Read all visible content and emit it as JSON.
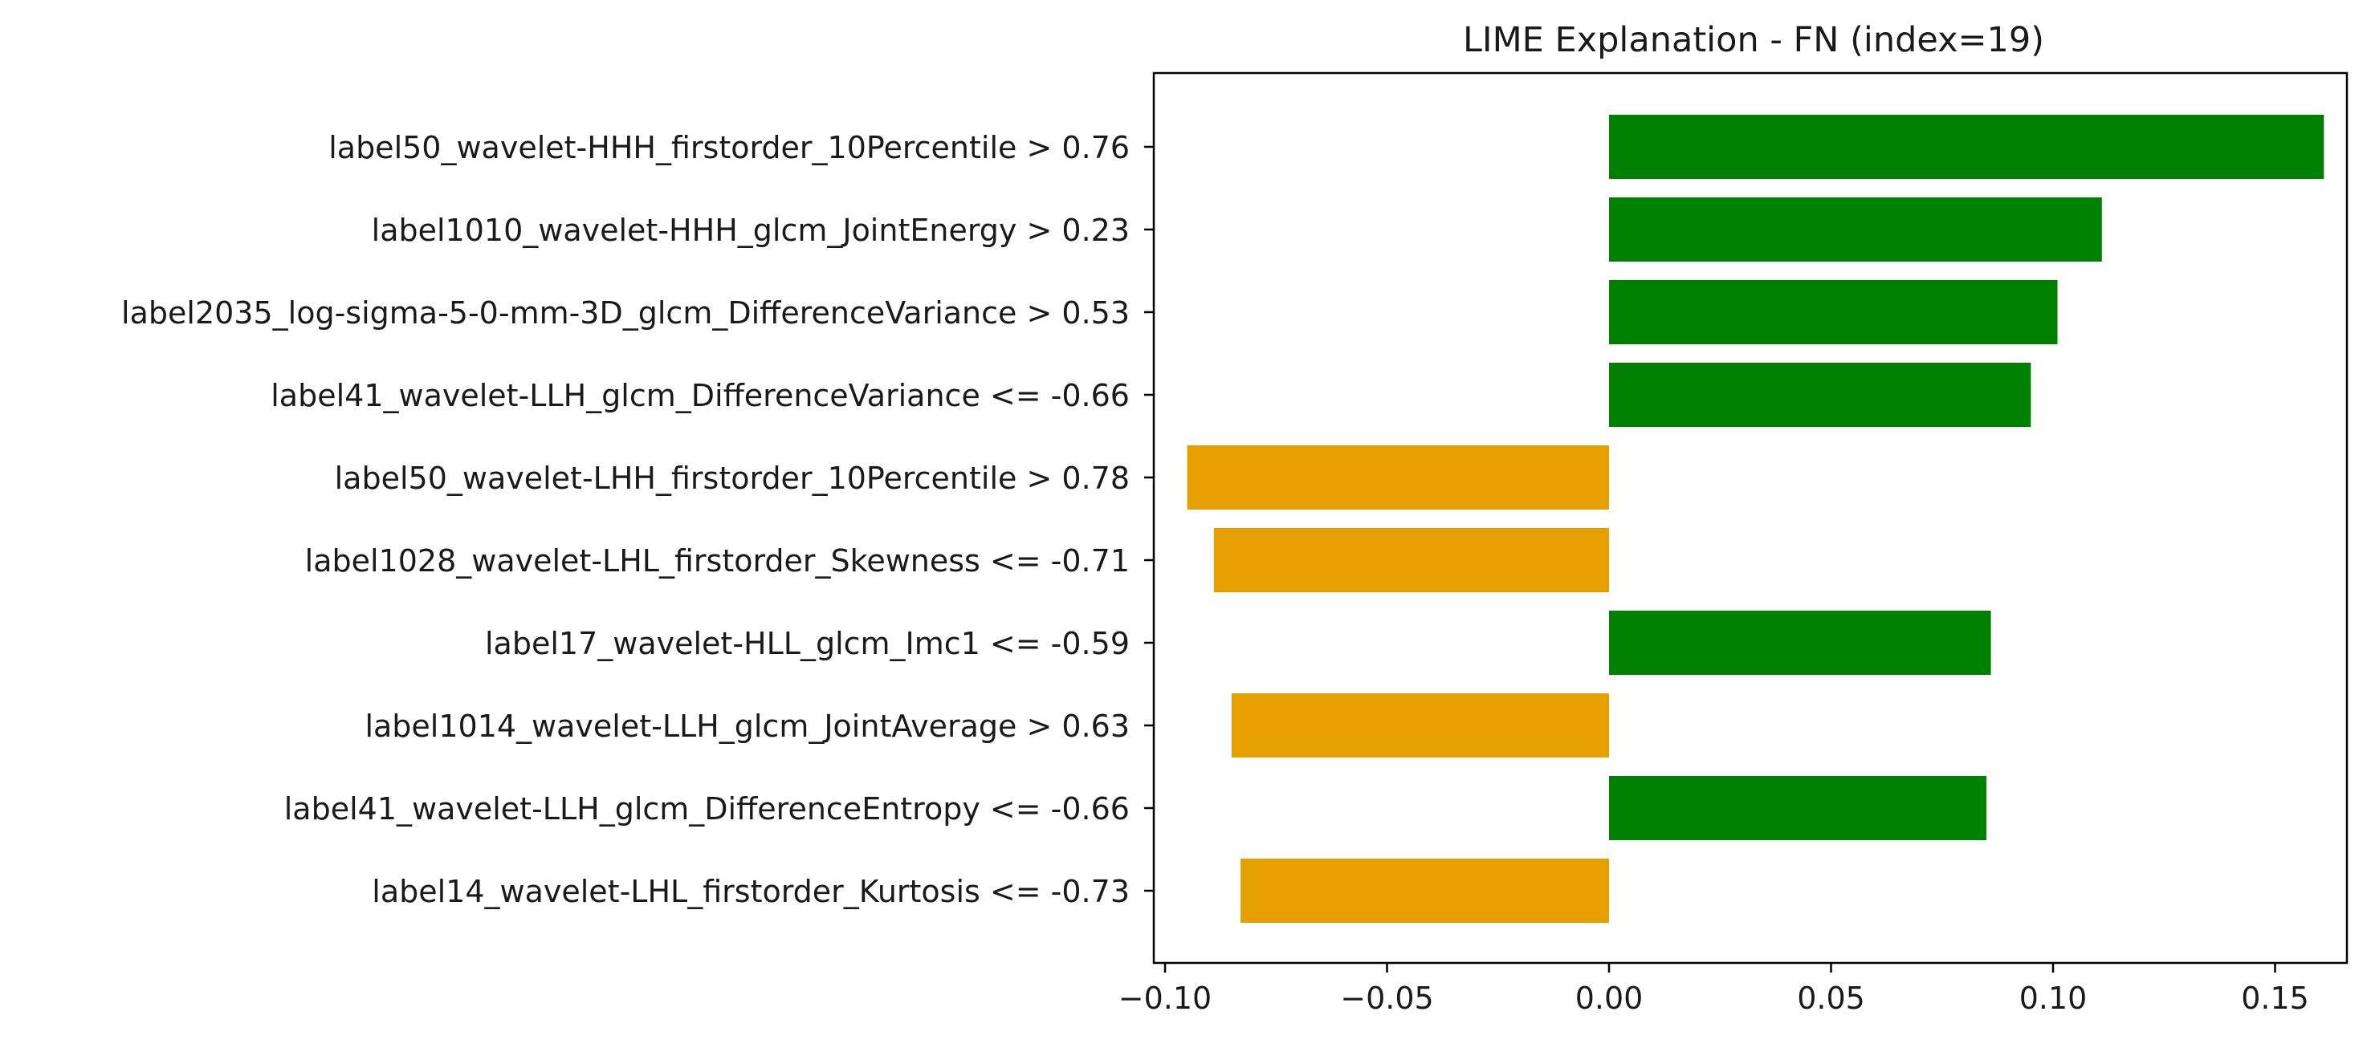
{
  "chart_data": {
    "type": "bar",
    "orientation": "horizontal",
    "title": "LIME Explanation - FN (index=19)",
    "xlabel": "",
    "ylabel": "",
    "xlim": [
      -0.1,
      0.16
    ],
    "xticks": [
      -0.1,
      -0.05,
      0.0,
      0.05,
      0.1,
      0.15
    ],
    "xtick_labels": [
      "−0.10",
      "−0.05",
      "0.00",
      "0.05",
      "0.10",
      "0.15"
    ],
    "grid": false,
    "legend": "none",
    "colors": {
      "positive": "#008000",
      "negative": "#e69f00"
    },
    "categories": [
      "label50_wavelet-HHH_firstorder_10Percentile > 0.76",
      "label1010_wavelet-HHH_glcm_JointEnergy > 0.23",
      "label2035_log-sigma-5-0-mm-3D_glcm_DifferenceVariance > 0.53",
      "label41_wavelet-LLH_glcm_DifferenceVariance <= -0.66",
      "label50_wavelet-LHH_firstorder_10Percentile > 0.78",
      "label1028_wavelet-LHL_firstorder_Skewness <= -0.71",
      "label17_wavelet-HLL_glcm_Imc1 <= -0.59",
      "label1014_wavelet-LLH_glcm_JointAverage > 0.63",
      "label41_wavelet-LLH_glcm_DifferenceEntropy <= -0.66",
      "label14_wavelet-LHL_firstorder_Kurtosis <= -0.73"
    ],
    "values": [
      0.161,
      0.111,
      0.101,
      0.095,
      -0.095,
      -0.089,
      0.086,
      -0.085,
      0.085,
      -0.083
    ]
  }
}
